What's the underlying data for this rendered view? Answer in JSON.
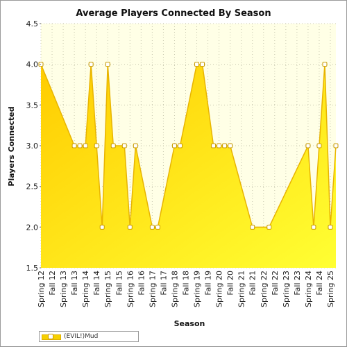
{
  "chart_data": {
    "type": "area",
    "title": "Average Players Connected By Season",
    "xlabel": "Season",
    "ylabel": "Players Connected",
    "ylim": [
      1.5,
      4.5
    ],
    "yticks": [
      "1.5",
      "2.0",
      "2.5",
      "3.0",
      "3.5",
      "4.0",
      "4.5"
    ],
    "grid": true,
    "legend_position": "bottom-left",
    "colors": {
      "fill_top": "#ffcc00",
      "fill_bottom": "#ffff33",
      "line": "#e8b400",
      "plot_background": "#ffffe6",
      "grid": "#c8c8b0"
    },
    "categories": [
      "Spring 12",
      "Fall 12",
      "Spring 13",
      "Fall 13",
      "Spring 14",
      "Fall 14",
      "Spring 15",
      "Fall 15",
      "Spring 16",
      "Fall 16",
      "Spring 17",
      "Fall 17",
      "Spring 18",
      "Fall 18",
      "Spring 19",
      "Fall 19",
      "Spring 20",
      "Fall 20",
      "Spring 21",
      "Fall 21",
      "Spring 22",
      "Fall 22",
      "Spring 23",
      "Fall 23",
      "Spring 24",
      "Fall 24",
      "Spring 25"
    ],
    "series": [
      {
        "name": "(EVIL!)Mud",
        "points": [
          [
            0,
            4.0
          ],
          [
            6,
            3.0
          ],
          [
            7,
            3.0
          ],
          [
            8,
            3.0
          ],
          [
            9,
            4.0
          ],
          [
            10,
            3.0
          ],
          [
            11,
            2.0
          ],
          [
            12,
            4.0
          ],
          [
            13,
            3.0
          ],
          [
            15,
            3.0
          ],
          [
            16,
            2.0
          ],
          [
            17,
            3.0
          ],
          [
            20,
            2.0
          ],
          [
            21,
            2.0
          ],
          [
            24,
            3.0
          ],
          [
            25,
            3.0
          ],
          [
            28,
            4.0
          ],
          [
            29,
            4.0
          ],
          [
            31,
            3.0
          ],
          [
            32,
            3.0
          ],
          [
            33,
            3.0
          ],
          [
            34,
            3.0
          ],
          [
            38,
            2.0
          ],
          [
            41,
            2.0
          ],
          [
            48,
            3.0
          ],
          [
            49,
            2.0
          ],
          [
            50,
            3.0
          ],
          [
            51,
            4.0
          ],
          [
            52,
            2.0
          ],
          [
            53,
            3.0
          ]
        ]
      }
    ]
  }
}
